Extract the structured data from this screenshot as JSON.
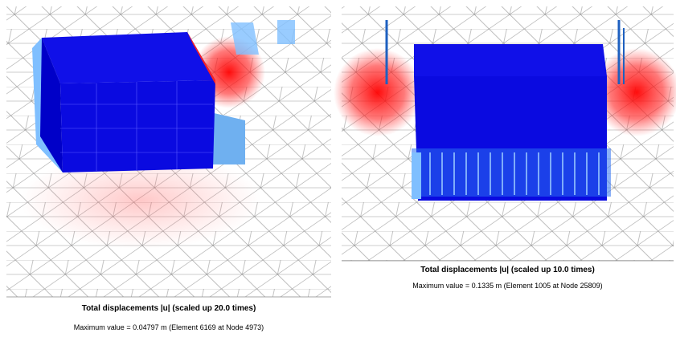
{
  "panels": [
    {
      "caption": "Total displacements |u| (scaled up 20.0 times)",
      "maximum": "Maximum value = 0.04797 m (Element 6169 at Node 4973)"
    },
    {
      "caption": "Total displacements |u| (scaled up 10.0 times)",
      "maximum": "Maximum value = 0.1335 m (Element 1005 at Node 25809)"
    }
  ]
}
